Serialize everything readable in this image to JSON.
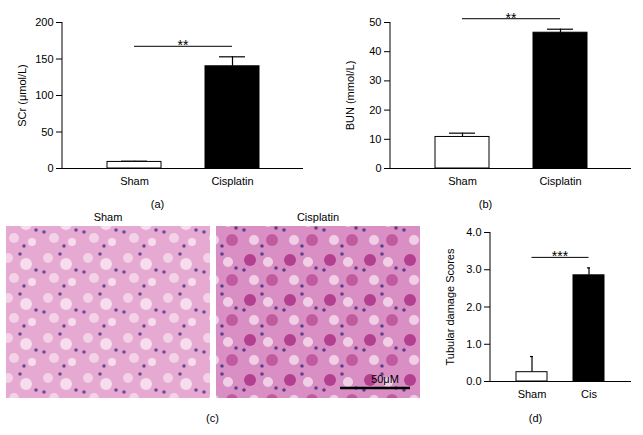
{
  "chart_data": [
    {
      "type": "bar",
      "caption": "(a)",
      "ylabel": "SCr (μmol/L)",
      "categories": [
        "Sham",
        "Cisplatin"
      ],
      "values": [
        9,
        140
      ],
      "errors": [
        1,
        13
      ],
      "colors": [
        "#ffffff",
        "#000000"
      ],
      "ylim": [
        0,
        200
      ],
      "yticks": [
        0,
        50,
        100,
        150,
        200
      ],
      "annotation": "**"
    },
    {
      "type": "bar",
      "caption": "(b)",
      "ylabel": "BUN (mmol/L)",
      "categories": [
        "Sham",
        "Cisplatin"
      ],
      "values": [
        10.8,
        46.5
      ],
      "errors": [
        1.3,
        1.2
      ],
      "colors": [
        "#ffffff",
        "#000000"
      ],
      "ylim": [
        0,
        50
      ],
      "yticks": [
        0,
        10,
        20,
        30,
        40,
        50
      ],
      "annotation": "**"
    },
    {
      "type": "image",
      "caption": "(c)",
      "titles": [
        "Sham",
        "Cisplatin"
      ],
      "annotation": "50μM"
    },
    {
      "type": "bar",
      "caption": "(d)",
      "ylabel": "Tubular damage Scores",
      "categories": [
        "Sham",
        "Cis"
      ],
      "values": [
        0.25,
        2.85
      ],
      "errors": [
        0.42,
        0.2
      ],
      "colors": [
        "#ffffff",
        "#000000"
      ],
      "ylim": [
        0,
        4
      ],
      "yticks": [
        0,
        1,
        2,
        3,
        4
      ],
      "annotation": "***"
    }
  ]
}
